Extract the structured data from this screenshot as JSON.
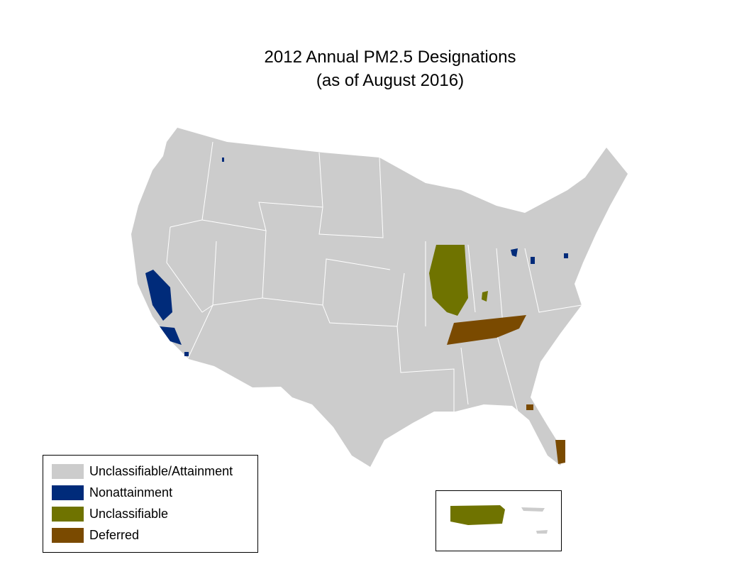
{
  "title": [
    "2012 Annual PM2.5 Designations",
    "(as of August 2016)"
  ],
  "legend": [
    {
      "name": "Unclassifiable/Attainment",
      "color": "#cccccc"
    },
    {
      "name": "Nonattainment",
      "color": "#002b7a"
    },
    {
      "name": "Unclassifiable",
      "color": "#6f7300"
    },
    {
      "name": "Deferred",
      "color": "#7a4a00"
    }
  ]
}
